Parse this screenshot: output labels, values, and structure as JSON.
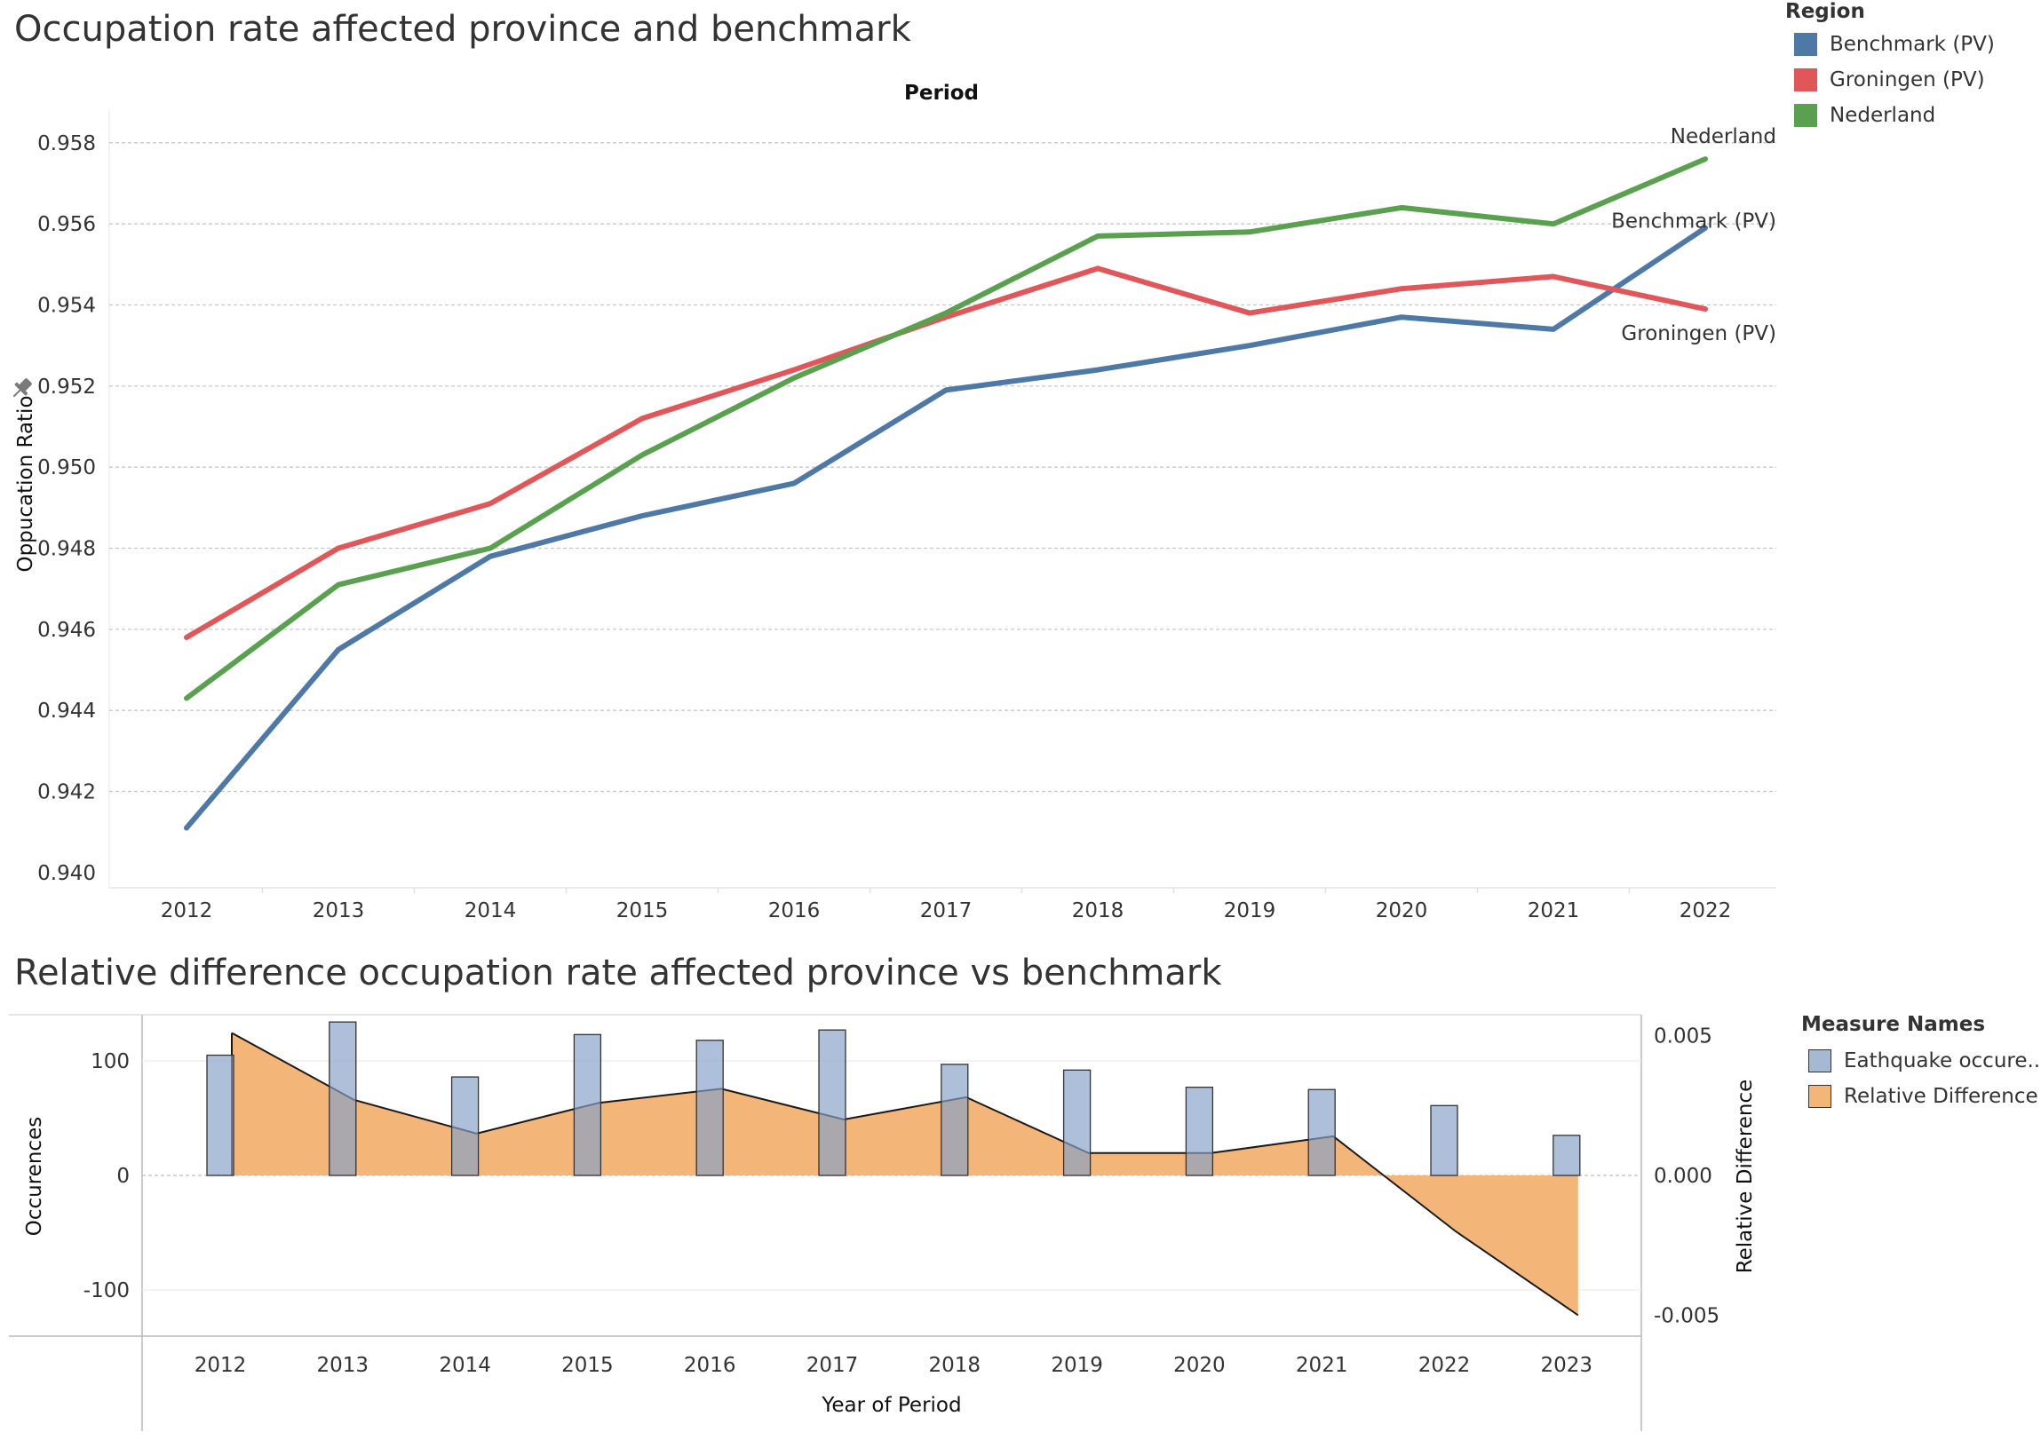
{
  "top": {
    "title": "Occupation rate affected province and benchmark",
    "column_header": "Period",
    "legend": {
      "title": "Region",
      "items": [
        {
          "label": "Benchmark (PV)",
          "color": "#4e79a7"
        },
        {
          "label": "Groningen (PV)",
          "color": "#e15759"
        },
        {
          "label": "Nederland",
          "color": "#59a14f"
        }
      ]
    }
  },
  "bottom": {
    "title": "Relative difference occupation rate affected province vs benchmark",
    "legend": {
      "title": "Measure Names",
      "items": [
        {
          "label": "Eathquake occure..",
          "color": "#a5b9d3",
          "border": "#333333"
        },
        {
          "label": "Relative Difference",
          "color": "#f4b678",
          "border": "#333333"
        }
      ]
    }
  },
  "chart_data": [
    {
      "type": "line",
      "title": "Occupation rate affected province and benchmark",
      "xlabel": "Period",
      "ylabel": "Oppucation Ratio",
      "x": [
        "2012",
        "2013",
        "2014",
        "2015",
        "2016",
        "2017",
        "2018",
        "2019",
        "2020",
        "2021",
        "2022"
      ],
      "ylim": [
        0.9398,
        0.9585
      ],
      "yticks": [
        "0.940",
        "0.942",
        "0.944",
        "0.946",
        "0.948",
        "0.950",
        "0.952",
        "0.954",
        "0.956",
        "0.958"
      ],
      "grid": true,
      "series": [
        {
          "name": "Benchmark (PV)",
          "color": "#4e79a7",
          "values": [
            0.9411,
            0.9455,
            0.9478,
            0.9488,
            0.9496,
            0.9519,
            0.9524,
            0.953,
            0.9537,
            0.9534,
            0.9559
          ]
        },
        {
          "name": "Groningen (PV)",
          "color": "#e15759",
          "values": [
            0.9458,
            0.948,
            0.9491,
            0.9512,
            0.9524,
            0.9537,
            0.9549,
            0.9538,
            0.9544,
            0.9547,
            0.9539
          ]
        },
        {
          "name": "Nederland",
          "color": "#59a14f",
          "values": [
            0.9443,
            0.9471,
            0.948,
            0.9503,
            0.9522,
            0.9538,
            0.9557,
            0.9558,
            0.9564,
            0.956,
            0.9576
          ]
        }
      ],
      "end_labels": [
        {
          "text": "Nederland",
          "series": "Nederland"
        },
        {
          "text": "Benchmark (PV)",
          "series": "Benchmark (PV)"
        },
        {
          "text": "Groningen (PV)",
          "series": "Groningen (PV)"
        }
      ]
    },
    {
      "type": "bar",
      "title": "Relative difference occupation rate affected province vs benchmark",
      "xlabel": "Year of Period",
      "ylabel": "Occurences",
      "y2label": "Relative Difference",
      "categories": [
        "2012",
        "2013",
        "2014",
        "2015",
        "2016",
        "2017",
        "2018",
        "2019",
        "2020",
        "2021",
        "2022",
        "2023"
      ],
      "ylim": [
        -140,
        140
      ],
      "yticks": [
        "100",
        "0",
        "-100"
      ],
      "y2lim": [
        -0.00575,
        0.00575
      ],
      "y2ticks": [
        "0.005",
        "0.000",
        "-0.005"
      ],
      "series": [
        {
          "name": "Eathquake occure..",
          "type": "bar",
          "color": "#a5b9d3",
          "values": [
            105,
            134,
            86,
            123,
            118,
            127,
            97,
            92,
            77,
            75,
            61,
            35
          ]
        },
        {
          "name": "Relative Difference",
          "type": "area",
          "color": "#f4b678",
          "values": [
            0.0051,
            0.0027,
            0.0015,
            0.0026,
            0.0031,
            0.002,
            0.0028,
            0.0008,
            0.0008,
            0.0014,
            -0.002,
            -0.005
          ]
        }
      ]
    }
  ]
}
